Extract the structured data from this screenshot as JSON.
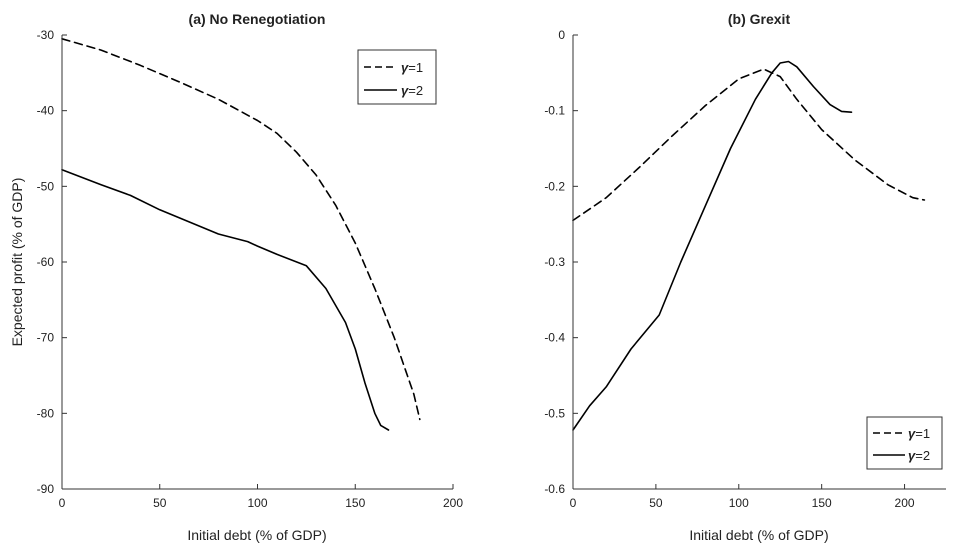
{
  "chart_data": [
    {
      "type": "line",
      "title": "(a) No Renegotiation",
      "xlabel": "Initial debt (% of GDP)",
      "ylabel": "Expected profit (% of GDP)",
      "xlim": [
        0,
        200
      ],
      "ylim": [
        -90,
        -30
      ],
      "xticks": [
        0,
        50,
        100,
        150,
        200
      ],
      "yticks": [
        -90,
        -80,
        -70,
        -60,
        -50,
        -40,
        -30
      ],
      "xtick_labels": [
        "0",
        "50",
        "100",
        "150",
        "200"
      ],
      "ytick_labels": [
        "-90",
        "-80",
        "-70",
        "-60",
        "-50",
        "-40",
        "-30"
      ],
      "grid": false,
      "legend_position": "top-right",
      "series": [
        {
          "name": "γ=1",
          "legend_symbol": "γ",
          "legend_value": "=1",
          "style": "dashed",
          "x": [
            0,
            20,
            40,
            60,
            80,
            100,
            110,
            120,
            130,
            140,
            150,
            160,
            170,
            180,
            183
          ],
          "y": [
            -30.5,
            -32.0,
            -34.0,
            -36.2,
            -38.5,
            -41.3,
            -43.0,
            -45.5,
            -48.5,
            -52.5,
            -57.5,
            -63.5,
            -70.0,
            -77.5,
            -80.8
          ]
        },
        {
          "name": "γ=2",
          "legend_symbol": "γ",
          "legend_value": "=2",
          "style": "solid",
          "x": [
            0,
            20,
            35,
            50,
            65,
            80,
            95,
            100,
            110,
            125,
            135,
            145,
            150,
            155,
            160,
            163,
            167
          ],
          "y": [
            -47.8,
            -49.8,
            -51.2,
            -53.1,
            -54.7,
            -56.3,
            -57.3,
            -57.9,
            -59.0,
            -60.5,
            -63.5,
            -68.0,
            -71.5,
            -76.0,
            -80.0,
            -81.6,
            -82.2
          ]
        }
      ]
    },
    {
      "type": "line",
      "title": "(b) Grexit",
      "xlabel": "Initial debt (% of GDP)",
      "ylabel": "",
      "xlim": [
        0,
        225
      ],
      "ylim": [
        -0.6,
        0
      ],
      "xticks": [
        0,
        50,
        100,
        150,
        200
      ],
      "yticks": [
        -0.6,
        -0.5,
        -0.4,
        -0.3,
        -0.2,
        -0.1,
        0
      ],
      "xtick_labels": [
        "0",
        "50",
        "100",
        "150",
        "200"
      ],
      "ytick_labels": [
        "-0.6",
        "-0.5",
        "-0.4",
        "-0.3",
        "-0.2",
        "-0.1",
        "0"
      ],
      "grid": false,
      "legend_position": "bottom-right",
      "series": [
        {
          "name": "γ=1",
          "legend_symbol": "γ",
          "legend_value": "=1",
          "style": "dashed",
          "x": [
            0,
            20,
            40,
            60,
            80,
            100,
            115,
            125,
            135,
            150,
            170,
            190,
            205,
            212
          ],
          "y": [
            -0.245,
            -0.215,
            -0.175,
            -0.133,
            -0.093,
            -0.058,
            -0.045,
            -0.055,
            -0.085,
            -0.125,
            -0.165,
            -0.198,
            -0.215,
            -0.218
          ]
        },
        {
          "name": "γ=2",
          "legend_symbol": "γ",
          "legend_value": "=2",
          "style": "solid",
          "x": [
            0,
            10,
            20,
            35,
            52,
            65,
            80,
            95,
            110,
            120,
            125,
            130,
            135,
            145,
            155,
            162,
            168
          ],
          "y": [
            -0.522,
            -0.49,
            -0.465,
            -0.415,
            -0.37,
            -0.3,
            -0.225,
            -0.15,
            -0.085,
            -0.05,
            -0.037,
            -0.035,
            -0.042,
            -0.068,
            -0.092,
            -0.101,
            -0.102
          ]
        }
      ]
    }
  ]
}
